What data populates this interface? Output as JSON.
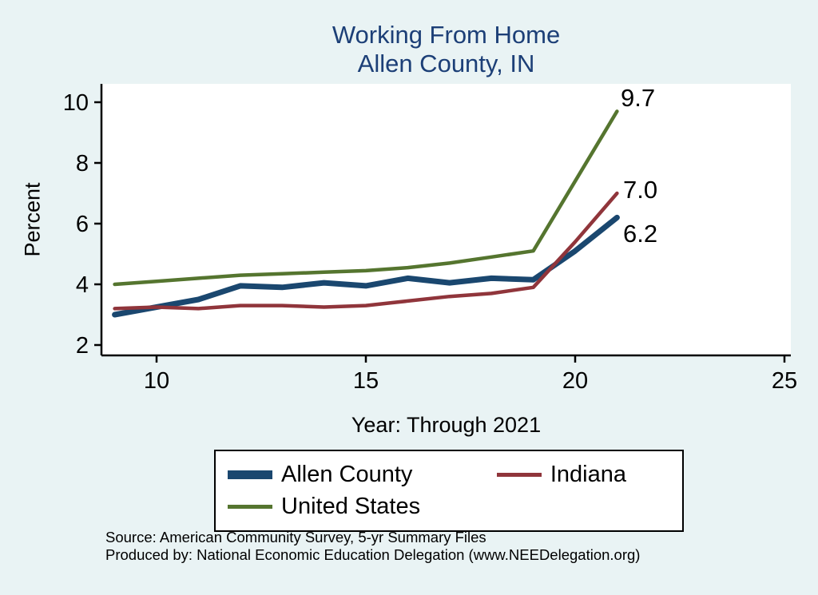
{
  "colors": {
    "page_background": "#e9f3f4",
    "plot_background": "#ffffff",
    "title": "#1c3f77",
    "axis": "#000000"
  },
  "chart_data": {
    "type": "line",
    "title": "Working From Home",
    "subtitle": "Allen County, IN",
    "xlabel": "Year: Through 2021",
    "ylabel": "Percent",
    "x": [
      9,
      10,
      11,
      12,
      13,
      14,
      15,
      16,
      17,
      18,
      19,
      20,
      21
    ],
    "x_ticks": [
      10,
      15,
      20,
      25
    ],
    "y_ticks": [
      2,
      4,
      6,
      8,
      10
    ],
    "xlim": [
      9,
      25
    ],
    "ylim": [
      2,
      10
    ],
    "grid": false,
    "legend_position": "bottom",
    "series": [
      {
        "name": "Allen County",
        "color": "#1a476f",
        "line_width": 7,
        "values": [
          3.0,
          3.25,
          3.5,
          3.95,
          3.9,
          4.05,
          3.95,
          4.2,
          4.05,
          4.2,
          4.15,
          5.1,
          6.2
        ],
        "end_label": "6.2"
      },
      {
        "name": "Indiana",
        "color": "#90353b",
        "line_width": 4.5,
        "values": [
          3.2,
          3.25,
          3.2,
          3.3,
          3.3,
          3.25,
          3.3,
          3.45,
          3.6,
          3.7,
          3.9,
          5.4,
          7.0
        ],
        "end_label": "7.0"
      },
      {
        "name": "United States",
        "color": "#55752f",
        "line_width": 4.5,
        "values": [
          4.0,
          4.1,
          4.2,
          4.3,
          4.35,
          4.4,
          4.45,
          4.55,
          4.7,
          4.9,
          5.1,
          7.4,
          9.7
        ],
        "end_label": "9.7"
      }
    ]
  },
  "footer": {
    "source": "Source: American Community Survey, 5-yr Summary Files",
    "produced_by": "Produced by: National Economic Education Delegation (www.NEEDelegation.org)"
  }
}
